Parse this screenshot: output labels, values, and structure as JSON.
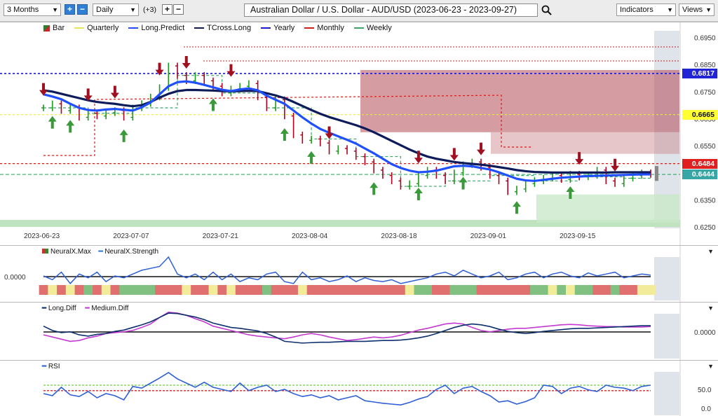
{
  "toolbar": {
    "range": "3 Months",
    "interval": "Daily",
    "plus_count": "(+3)",
    "title": "Australian Dollar / U.S. Dollar - AUD/USD (2023-06-23 - 2023-09-27)",
    "indicators": "Indicators",
    "views": "Views"
  },
  "main_legend": [
    {
      "label": "Bar",
      "color": "#2e7d32"
    },
    {
      "label": "Quarterly",
      "color": "#e6e65a"
    },
    {
      "label": "Long.Predict",
      "color": "#1f4fff"
    },
    {
      "label": "TCross.Long",
      "color": "#0d1b5a"
    },
    {
      "label": "Yearly",
      "color": "#1a1ad0"
    },
    {
      "label": "Monthly",
      "color": "#d21c1c"
    },
    {
      "label": "Weekly",
      "color": "#3aa66a"
    }
  ],
  "price_axis": [
    "0.6950",
    "0.6850",
    "0.6750",
    "0.6650",
    "0.6550",
    "0.6450",
    "0.6350",
    "0.6250"
  ],
  "price_tags": [
    {
      "value": "0.6817",
      "bg": "#2323d6",
      "fg": "#ffffff"
    },
    {
      "value": "0.6665",
      "bg": "#ffff33",
      "fg": "#111111"
    },
    {
      "value": "0.6484",
      "bg": "#e02020",
      "fg": "#ffffff"
    },
    {
      "value": "0.6444",
      "bg": "#39a6a6",
      "fg": "#ffffff"
    }
  ],
  "date_axis": [
    "2023-06-23",
    "2023-07-07",
    "2023-07-21",
    "2023-08-04",
    "2023-08-18",
    "2023-09-01",
    "2023-09-15"
  ],
  "neural_legend": [
    "NeuralX.Max",
    "NeuralX.Strength"
  ],
  "neural_axis": "0.0000",
  "diff_legend": [
    "Long.Diff",
    "Medium.Diff"
  ],
  "diff_axis": "0.0000",
  "rsi_legend": [
    "RSI"
  ],
  "rsi_axis": [
    "50.0",
    "0.0"
  ],
  "chart_data": {
    "type": "line",
    "title": "Australian Dollar / U.S. Dollar - AUD/USD (2023-06-23 - 2023-09-27)",
    "x": [
      "2023-06-23",
      "2023-06-26",
      "2023-06-27",
      "2023-06-28",
      "2023-06-29",
      "2023-06-30",
      "2023-07-03",
      "2023-07-04",
      "2023-07-05",
      "2023-07-06",
      "2023-07-07",
      "2023-07-10",
      "2023-07-11",
      "2023-07-12",
      "2023-07-13",
      "2023-07-14",
      "2023-07-17",
      "2023-07-18",
      "2023-07-19",
      "2023-07-20",
      "2023-07-21",
      "2023-07-24",
      "2023-07-25",
      "2023-07-26",
      "2023-07-27",
      "2023-07-28",
      "2023-07-31",
      "2023-08-01",
      "2023-08-02",
      "2023-08-03",
      "2023-08-04",
      "2023-08-07",
      "2023-08-08",
      "2023-08-09",
      "2023-08-10",
      "2023-08-11",
      "2023-08-14",
      "2023-08-15",
      "2023-08-16",
      "2023-08-17",
      "2023-08-18",
      "2023-08-21",
      "2023-08-22",
      "2023-08-23",
      "2023-08-24",
      "2023-08-25",
      "2023-08-28",
      "2023-08-29",
      "2023-08-30",
      "2023-08-31",
      "2023-09-01",
      "2023-09-04",
      "2023-09-05",
      "2023-09-06",
      "2023-09-07",
      "2023-09-08",
      "2023-09-11",
      "2023-09-12",
      "2023-09-13",
      "2023-09-14",
      "2023-09-15",
      "2023-09-18",
      "2023-09-19",
      "2023-09-20",
      "2023-09-21",
      "2023-09-22",
      "2023-09-25",
      "2023-09-26",
      "2023-09-27"
    ],
    "ylim": [
      0.625,
      0.698
    ],
    "yticks": [
      0.625,
      0.635,
      0.645,
      0.655,
      0.665,
      0.675,
      0.685,
      0.695
    ],
    "series": [
      {
        "name": "Long.Predict",
        "color": "#1f4fff",
        "values": [
          0.674,
          0.6732,
          0.6722,
          0.6705,
          0.669,
          0.6682,
          0.668,
          0.6684,
          0.6686,
          0.6683,
          0.668,
          0.6692,
          0.671,
          0.674,
          0.677,
          0.6785,
          0.6788,
          0.6783,
          0.6775,
          0.6766,
          0.6757,
          0.6752,
          0.6758,
          0.6762,
          0.6755,
          0.6735,
          0.672,
          0.6705,
          0.668,
          0.6655,
          0.6632,
          0.6612,
          0.6598,
          0.6585,
          0.6572,
          0.6558,
          0.654,
          0.6522,
          0.6502,
          0.6482,
          0.6468,
          0.6458,
          0.6452,
          0.6454,
          0.6458,
          0.6466,
          0.6474,
          0.6476,
          0.6474,
          0.6468,
          0.6462,
          0.6452,
          0.644,
          0.6428,
          0.6422,
          0.642,
          0.6424,
          0.6428,
          0.6432,
          0.6434,
          0.6436,
          0.6438,
          0.6439,
          0.644,
          0.6441,
          0.6442,
          0.6443,
          0.6444,
          0.6444
        ]
      },
      {
        "name": "TCross.Long",
        "color": "#0d1b5a",
        "values": [
          0.6755,
          0.675,
          0.6742,
          0.6734,
          0.6726,
          0.6718,
          0.6712,
          0.6708,
          0.6705,
          0.67,
          0.6696,
          0.67,
          0.6712,
          0.6728,
          0.6742,
          0.6752,
          0.6756,
          0.6756,
          0.6755,
          0.6754,
          0.6752,
          0.6751,
          0.6752,
          0.6753,
          0.6752,
          0.6744,
          0.6736,
          0.6726,
          0.6712,
          0.6697,
          0.6682,
          0.6668,
          0.6656,
          0.6646,
          0.6636,
          0.6626,
          0.6614,
          0.66,
          0.6584,
          0.6568,
          0.6552,
          0.6536,
          0.6522,
          0.651,
          0.6502,
          0.6496,
          0.649,
          0.6486,
          0.6483,
          0.648,
          0.6476,
          0.6471,
          0.6466,
          0.646,
          0.6456,
          0.6453,
          0.6452,
          0.6451,
          0.6451,
          0.6451,
          0.6451,
          0.6451,
          0.6451,
          0.6451,
          0.6452,
          0.6452,
          0.6452,
          0.6452,
          0.6452
        ]
      },
      {
        "name": "Close",
        "color": "#1b8a1b",
        "values": [
          0.669,
          0.6705,
          0.668,
          0.669,
          0.6655,
          0.667,
          0.666,
          0.6672,
          0.668,
          0.6655,
          0.669,
          0.6706,
          0.673,
          0.6765,
          0.6845,
          0.681,
          0.679,
          0.681,
          0.679,
          0.677,
          0.6745,
          0.676,
          0.677,
          0.678,
          0.673,
          0.669,
          0.672,
          0.666,
          0.659,
          0.657,
          0.6575,
          0.656,
          0.653,
          0.654,
          0.653,
          0.651,
          0.649,
          0.646,
          0.644,
          0.642,
          0.64,
          0.641,
          0.644,
          0.646,
          0.644,
          0.642,
          0.645,
          0.648,
          0.649,
          0.647,
          0.644,
          0.642,
          0.638,
          0.639,
          0.641,
          0.642,
          0.643,
          0.644,
          0.6425,
          0.6445,
          0.6435,
          0.644,
          0.646,
          0.642,
          0.641,
          0.643,
          0.644,
          0.645,
          0.6444
        ]
      },
      {
        "name": "Yearly",
        "color": "#1a1ad0",
        "values_const": 0.6817
      },
      {
        "name": "Monthly",
        "color": "#d21c1c",
        "values_const": 0.6484
      },
      {
        "name": "Weekly",
        "color": "#3aa66a",
        "values_const": 0.6444
      },
      {
        "name": "Quarterly",
        "color": "#e6e65a",
        "values_const": 0.6665
      }
    ],
    "arrows_down": [
      0,
      5,
      8,
      13,
      16,
      21,
      32,
      42,
      46,
      49,
      60,
      64
    ],
    "arrows_up": [
      1,
      3,
      9,
      19,
      27,
      30,
      37,
      42,
      47,
      53,
      59
    ]
  },
  "neural_data": {
    "strength": [
      0.5,
      0.4,
      0.6,
      0.3,
      0.55,
      0.45,
      0.6,
      0.35,
      0.5,
      0.45,
      0.55,
      0.65,
      0.7,
      0.75,
      1.0,
      0.55,
      0.45,
      0.55,
      0.4,
      0.6,
      0.4,
      0.55,
      0.35,
      0.45,
      0.4,
      0.55,
      0.6,
      0.35,
      0.3,
      0.6,
      0.4,
      0.45,
      0.35,
      0.4,
      0.5,
      0.35,
      0.45,
      0.38,
      0.35,
      0.4,
      0.3,
      0.35,
      0.4,
      0.45,
      0.55,
      0.6,
      0.5,
      0.65,
      0.55,
      0.45,
      0.5,
      0.6,
      0.4,
      0.45,
      0.55,
      0.6,
      0.45,
      0.55,
      0.6,
      0.5,
      0.45,
      0.58,
      0.5,
      0.55,
      0.6,
      0.45,
      0.5,
      0.55,
      0.52
    ],
    "blocks": [
      "red",
      "yellow",
      "red",
      "yellow",
      "red",
      "green",
      "red",
      "yellow",
      "red",
      "green",
      "green",
      "green",
      "green",
      "red",
      "red",
      "red",
      "yellow",
      "red",
      "red",
      "yellow",
      "red",
      "yellow",
      "red",
      "red",
      "red",
      "green",
      "red",
      "red",
      "red",
      "yellow",
      "red",
      "red",
      "red",
      "red",
      "red",
      "red",
      "red",
      "red",
      "red",
      "red",
      "red",
      "yellow",
      "green",
      "green",
      "red",
      "red",
      "green",
      "green",
      "green",
      "red",
      "red",
      "red",
      "red",
      "red",
      "red",
      "green",
      "green",
      "yellow",
      "green",
      "yellow",
      "green",
      "green",
      "red",
      "red",
      "green",
      "red",
      "red",
      "yellow",
      "yellow"
    ]
  },
  "diff_data": {
    "long": [
      0.35,
      0.45,
      0.5,
      0.48,
      0.55,
      0.58,
      0.54,
      0.52,
      0.47,
      0.44,
      0.38,
      0.32,
      0.25,
      0.15,
      0.05,
      0.06,
      0.1,
      0.14,
      0.2,
      0.28,
      0.33,
      0.38,
      0.4,
      0.43,
      0.46,
      0.52,
      0.6,
      0.7,
      0.72,
      0.74,
      0.73,
      0.72,
      0.72,
      0.71,
      0.7,
      0.7,
      0.7,
      0.69,
      0.68,
      0.68,
      0.67,
      0.65,
      0.62,
      0.58,
      0.52,
      0.45,
      0.38,
      0.33,
      0.3,
      0.32,
      0.36,
      0.42,
      0.47,
      0.5,
      0.52,
      0.5,
      0.47,
      0.45,
      0.43,
      0.41,
      0.4,
      0.4,
      0.39,
      0.38,
      0.37,
      0.36,
      0.35,
      0.34,
      0.34
    ],
    "medium": [
      0.55,
      0.6,
      0.65,
      0.7,
      0.68,
      0.62,
      0.58,
      0.52,
      0.5,
      0.48,
      0.45,
      0.38,
      0.3,
      0.15,
      0.03,
      0.05,
      0.1,
      0.18,
      0.25,
      0.35,
      0.4,
      0.45,
      0.5,
      0.55,
      0.58,
      0.6,
      0.62,
      0.64,
      0.6,
      0.55,
      0.52,
      0.55,
      0.6,
      0.64,
      0.68,
      0.66,
      0.63,
      0.6,
      0.62,
      0.6,
      0.56,
      0.5,
      0.44,
      0.4,
      0.35,
      0.3,
      0.28,
      0.3,
      0.38,
      0.45,
      0.48,
      0.45,
      0.42,
      0.4,
      0.4,
      0.38,
      0.36,
      0.34,
      0.32,
      0.31,
      0.32,
      0.34,
      0.35,
      0.36,
      0.36,
      0.37,
      0.37,
      0.37,
      0.36
    ]
  },
  "rsi_data": {
    "values": [
      0.55,
      0.6,
      0.4,
      0.58,
      0.62,
      0.5,
      0.65,
      0.55,
      0.6,
      0.7,
      0.38,
      0.42,
      0.3,
      0.18,
      0.05,
      0.2,
      0.3,
      0.4,
      0.28,
      0.4,
      0.45,
      0.5,
      0.3,
      0.48,
      0.4,
      0.35,
      0.5,
      0.45,
      0.55,
      0.62,
      0.58,
      0.65,
      0.6,
      0.7,
      0.65,
      0.6,
      0.72,
      0.75,
      0.78,
      0.8,
      0.82,
      0.76,
      0.68,
      0.62,
      0.45,
      0.35,
      0.55,
      0.42,
      0.38,
      0.5,
      0.6,
      0.75,
      0.72,
      0.8,
      0.74,
      0.65,
      0.35,
      0.38,
      0.55,
      0.42,
      0.38,
      0.46,
      0.5,
      0.35,
      0.4,
      0.42,
      0.48,
      0.38,
      0.35
    ],
    "overbought": 0.35,
    "oversold": 0.48
  }
}
